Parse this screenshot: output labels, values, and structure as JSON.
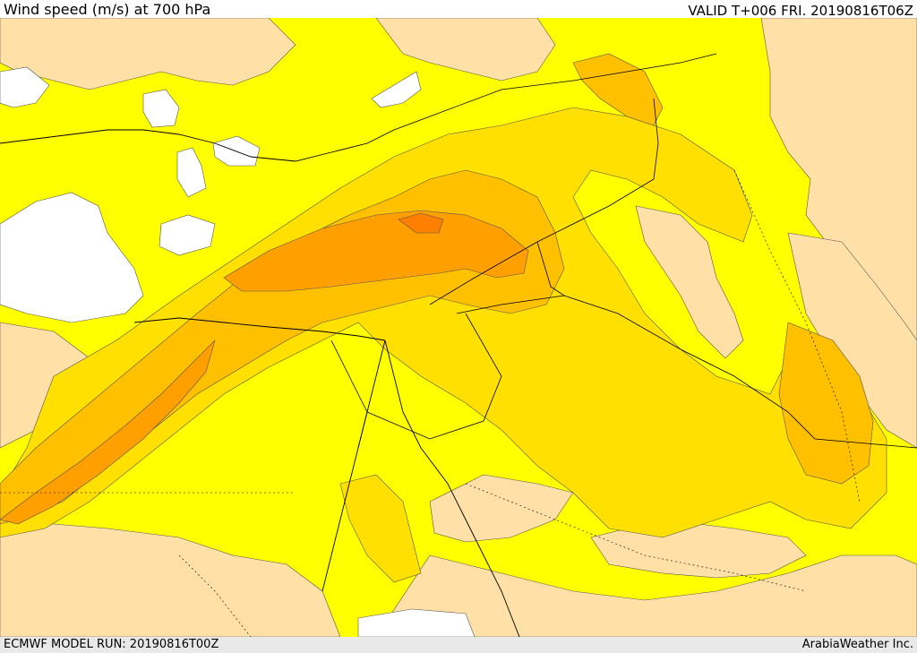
{
  "header": {
    "title": "Wind speed (m/s) at 700 hPa",
    "valid": "VALID T+006 FRI. 20190816T06Z"
  },
  "footer": {
    "model_run": "ECMWF MODEL RUN: 20190816T00Z",
    "credit": "ArabiaWeather Inc."
  },
  "map": {
    "field": "wind speed",
    "level_hpa": 700,
    "colors": {
      "low_beige": "#ffe0a6",
      "yellow": "#ffff00",
      "gold": "#ffe000",
      "amber": "#ffc000",
      "orange": "#ffa000",
      "dark_orange": "#ff7f00",
      "calm_white": "#ffffff"
    }
  }
}
